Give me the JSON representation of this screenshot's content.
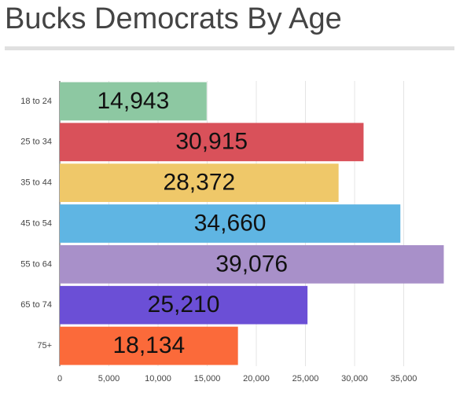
{
  "chart_data": {
    "type": "bar",
    "orientation": "horizontal",
    "title": "Bucks Democrats By Age",
    "categories": [
      "18 to 24",
      "25 to 34",
      "35 to 44",
      "45 to 54",
      "55 to 64",
      "65 to 74",
      "75+"
    ],
    "values": [
      14943,
      30915,
      28372,
      34660,
      39076,
      25210,
      18134
    ],
    "value_labels": [
      "14,943",
      "30,915",
      "28,372",
      "34,660",
      "39,076",
      "25,210",
      "18,134"
    ],
    "colors": [
      "#8dc8a2",
      "#d9515a",
      "#efc869",
      "#5fb5e3",
      "#a890c9",
      "#6b4fd6",
      "#fb6a3a"
    ],
    "xlim": [
      0,
      40000
    ],
    "xticks": [
      0,
      {
        "value": 5000,
        "label": "5,000"
      },
      {
        "value": 10000,
        "label": "10,000"
      },
      {
        "value": 15000,
        "label": "15,000"
      },
      {
        "value": 20000,
        "label": "20,000"
      },
      {
        "value": 25000,
        "label": "25,000"
      },
      {
        "value": 30000,
        "label": "30,000"
      },
      {
        "value": 35000,
        "label": "35,000"
      }
    ],
    "grid": true
  }
}
